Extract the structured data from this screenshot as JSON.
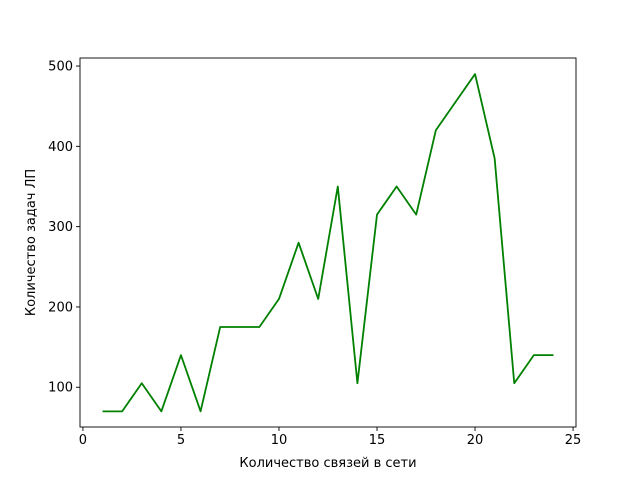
{
  "chart_data": {
    "type": "line",
    "title": "",
    "xlabel": "Количество связей в сети",
    "ylabel": "Количество задач ЛП",
    "xlim": [
      -0.15,
      25.15
    ],
    "ylim": [
      50.5,
      510
    ],
    "xticks": [
      0,
      5,
      10,
      15,
      20,
      25
    ],
    "yticks": [
      100,
      200,
      300,
      400,
      500
    ],
    "grid": false,
    "legend": "none",
    "series": [
      {
        "color": "#008000",
        "x": [
          1,
          2,
          3,
          4,
          5,
          6,
          7,
          8,
          9,
          10,
          11,
          12,
          13,
          14,
          15,
          16,
          17,
          18,
          19,
          20,
          21,
          22,
          23,
          24
        ],
        "y": [
          70,
          70,
          105,
          70,
          140,
          70,
          175,
          175,
          175,
          210,
          280,
          210,
          350,
          105,
          315,
          350,
          315,
          420,
          455,
          490,
          385,
          105,
          140,
          140
        ]
      }
    ]
  }
}
